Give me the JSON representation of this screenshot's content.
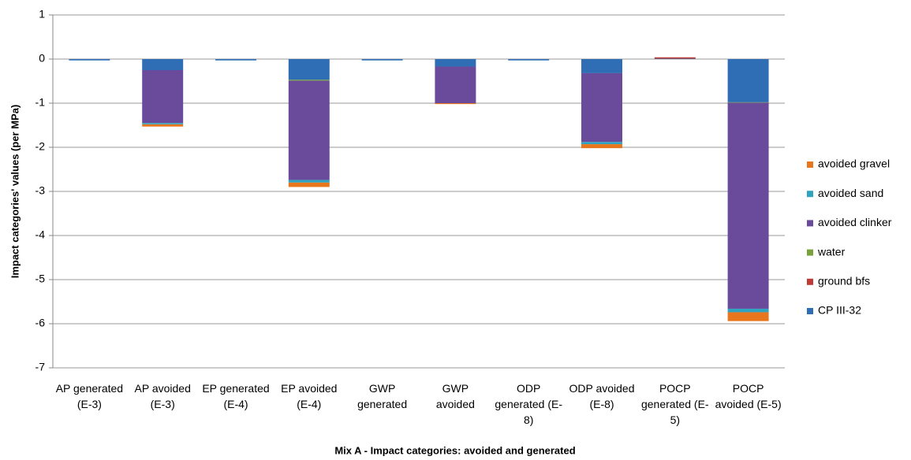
{
  "chart_data": {
    "type": "bar",
    "stacked": true,
    "title": "Mix A - Impact categories: avoided and generated",
    "y_label": "Impact categories' values (per MPa)",
    "categories": [
      "AP generated (E-3)",
      "AP avoided (E-3)",
      "EP generated (E-4)",
      "EP avoided (E-4)",
      "GWP generated",
      "GWP avoided",
      "ODP generated (E-8)",
      "ODP avoided (E-8)",
      "POCP generated (E-5)",
      "POCP avoided (E-5)"
    ],
    "series": [
      {
        "name": "CP III-32",
        "color": "#2f6db4",
        "values": [
          -0.03,
          -0.25,
          -0.03,
          -0.47,
          -0.03,
          -0.17,
          -0.03,
          -0.32,
          0.01,
          -0.98
        ]
      },
      {
        "name": "ground bfs",
        "color": "#be3a34",
        "values": [
          0,
          0,
          0,
          0,
          0,
          0,
          0,
          0,
          0.03,
          0
        ]
      },
      {
        "name": "water",
        "color": "#78a33c",
        "values": [
          0,
          0,
          0,
          -0.02,
          0,
          0,
          0,
          0,
          0,
          -0.01
        ]
      },
      {
        "name": "avoided clinker",
        "color": "#6a4a9a",
        "values": [
          0,
          -1.2,
          0,
          -2.25,
          0,
          -0.83,
          0,
          -1.56,
          0,
          -4.67
        ]
      },
      {
        "name": "avoided sand",
        "color": "#2fa3bf",
        "values": [
          0,
          -0.03,
          0,
          -0.06,
          0,
          0,
          0,
          -0.05,
          0,
          -0.08
        ]
      },
      {
        "name": "avoided gravel",
        "color": "#e8761c",
        "values": [
          0,
          -0.05,
          0,
          -0.1,
          0,
          -0.02,
          0,
          -0.09,
          0,
          -0.2
        ]
      }
    ],
    "ylim": [
      -7,
      1
    ],
    "yticks": [
      -7,
      -6,
      -5,
      -4,
      -3,
      -2,
      -1,
      0,
      1
    ],
    "grid": true
  }
}
